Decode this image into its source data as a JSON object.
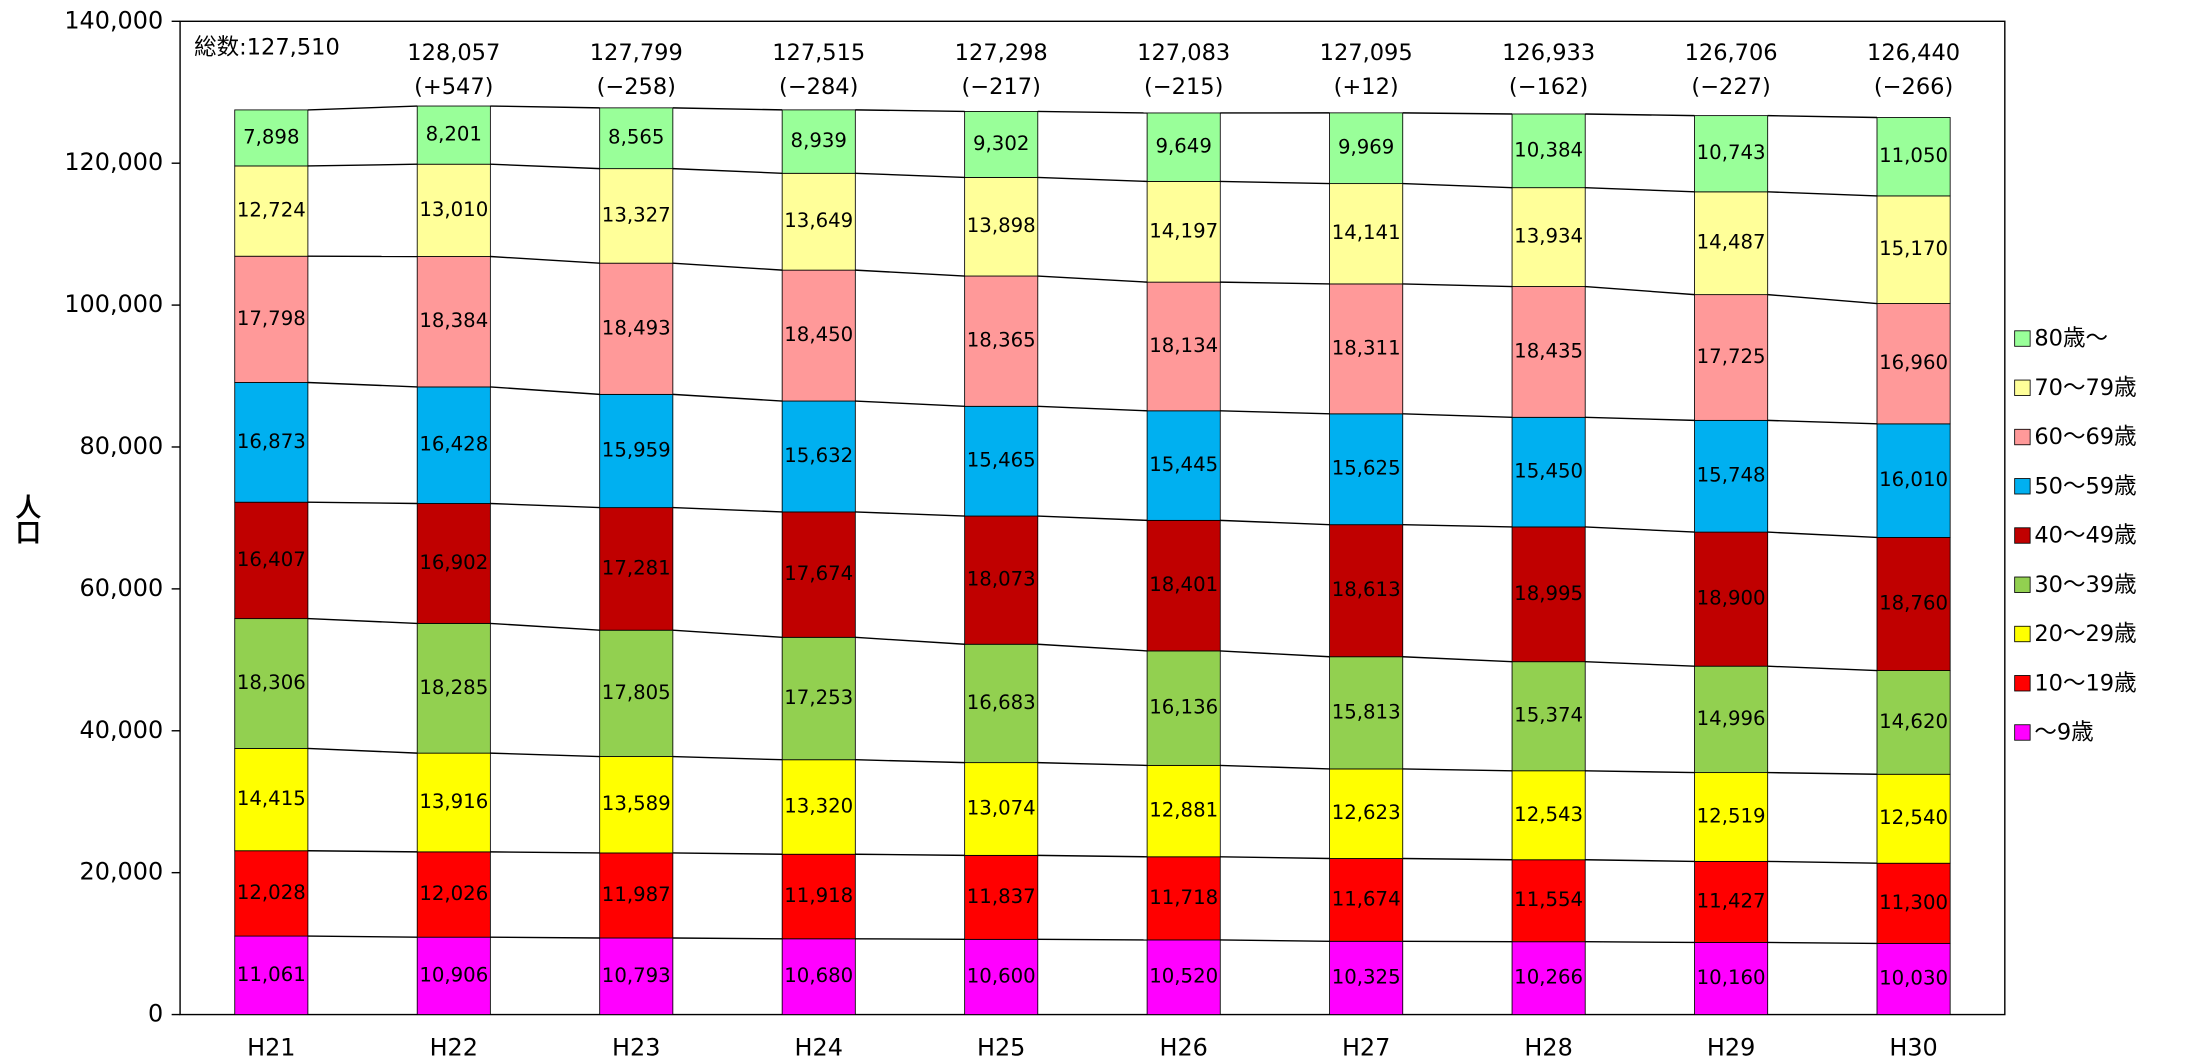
{
  "chart_data": {
    "type": "stacked_bar",
    "y_label": "人口",
    "categories": [
      "H21",
      "H22",
      "H23",
      "H24",
      "H25",
      "H26",
      "H27",
      "H28",
      "H29",
      "H30"
    ],
    "ylim": [
      0,
      140000
    ],
    "yticks": [
      0,
      {
        "value": 20000,
        "label": "20,000"
      },
      {
        "value": 40000,
        "label": "40,000"
      },
      {
        "value": 60000,
        "label": "60,000"
      },
      {
        "value": 80000,
        "label": "80,000"
      },
      {
        "value": 100000,
        "label": "100,000"
      },
      {
        "value": 120000,
        "label": "120,000"
      },
      {
        "value": 140000,
        "label": "140,000"
      }
    ],
    "series": [
      {
        "name": "〜9歳",
        "color": "#ff00ff",
        "values": [
          11061,
          10906,
          10793,
          10680,
          10600,
          10520,
          10325,
          10266,
          10160,
          10030
        ],
        "value_labels": [
          "11,061",
          "10,906",
          "10,793",
          "10,680",
          "10,600",
          "10,520",
          "10,325",
          "10,266",
          "10,160",
          "10,030"
        ]
      },
      {
        "name": "10〜19歳",
        "color": "#ff0000",
        "values": [
          12028,
          12026,
          11987,
          11918,
          11837,
          11718,
          11674,
          11554,
          11427,
          11300
        ],
        "value_labels": [
          "12,028",
          "12,026",
          "11,987",
          "11,918",
          "11,837",
          "11,718",
          "11,674",
          "11,554",
          "11,427",
          "11,300"
        ]
      },
      {
        "name": "20〜29歳",
        "color": "#ffff00",
        "values": [
          14415,
          13916,
          13589,
          13320,
          13074,
          12881,
          12623,
          12543,
          12519,
          12540
        ],
        "value_labels": [
          "14,415",
          "13,916",
          "13,589",
          "13,320",
          "13,074",
          "12,881",
          "12,623",
          "12,543",
          "12,519",
          "12,540"
        ]
      },
      {
        "name": "30〜39歳",
        "color": "#92d050",
        "values": [
          18306,
          18285,
          17805,
          17253,
          16683,
          16136,
          15813,
          15374,
          14996,
          14620
        ],
        "value_labels": [
          "18,306",
          "18,285",
          "17,805",
          "17,253",
          "16,683",
          "16,136",
          "15,813",
          "15,374",
          "14,996",
          "14,620"
        ]
      },
      {
        "name": "40〜49歳",
        "color": "#c00000",
        "values": [
          16407,
          16902,
          17281,
          17674,
          18073,
          18401,
          18613,
          18995,
          18900,
          18760
        ],
        "value_labels": [
          "16,407",
          "16,902",
          "17,281",
          "17,674",
          "18,073",
          "18,401",
          "18,613",
          "18,995",
          "18,900",
          "18,760"
        ]
      },
      {
        "name": "50〜59歳",
        "color": "#00b0f0",
        "values": [
          16873,
          16428,
          15959,
          15632,
          15465,
          15445,
          15625,
          15450,
          15748,
          16010
        ],
        "value_labels": [
          "16,873",
          "16,428",
          "15,959",
          "15,632",
          "15,465",
          "15,445",
          "15,625",
          "15,450",
          "15,748",
          "16,010"
        ]
      },
      {
        "name": "60〜69歳",
        "color": "#ff9999",
        "values": [
          17798,
          18384,
          18493,
          18450,
          18365,
          18134,
          18311,
          18435,
          17725,
          16960
        ],
        "value_labels": [
          "17,798",
          "18,384",
          "18,493",
          "18,450",
          "18,365",
          "18,134",
          "18,311",
          "18,435",
          "17,725",
          "16,960"
        ]
      },
      {
        "name": "70〜79歳",
        "color": "#ffff99",
        "values": [
          12724,
          13010,
          13327,
          13649,
          13898,
          14197,
          14141,
          13934,
          14487,
          15170
        ],
        "value_labels": [
          "12,724",
          "13,010",
          "13,327",
          "13,649",
          "13,898",
          "14,197",
          "14,141",
          "13,934",
          "14,487",
          "15,170"
        ]
      },
      {
        "name": "80歳〜",
        "color": "#99ff99",
        "values": [
          7898,
          8201,
          8565,
          8939,
          9302,
          9649,
          9969,
          10384,
          10743,
          11050
        ],
        "value_labels": [
          "7,898",
          "8,201",
          "8,565",
          "8,939",
          "9,302",
          "9,649",
          "9,969",
          "10,384",
          "10,743",
          "11,050"
        ]
      }
    ],
    "totals": {
      "values": [
        127510,
        128057,
        127799,
        127515,
        127298,
        127083,
        127095,
        126933,
        126706,
        126440
      ],
      "value_labels": [
        "総数:127,510",
        "128,057",
        "127,799",
        "127,515",
        "127,298",
        "127,083",
        "127,095",
        "126,933",
        "126,706",
        "126,440"
      ],
      "changes": [
        null,
        "(+547)",
        "(−258)",
        "(−284)",
        "(−217)",
        "(−215)",
        "(+12)",
        "(−162)",
        "(−227)",
        "(−266)"
      ]
    },
    "legend": "right"
  }
}
